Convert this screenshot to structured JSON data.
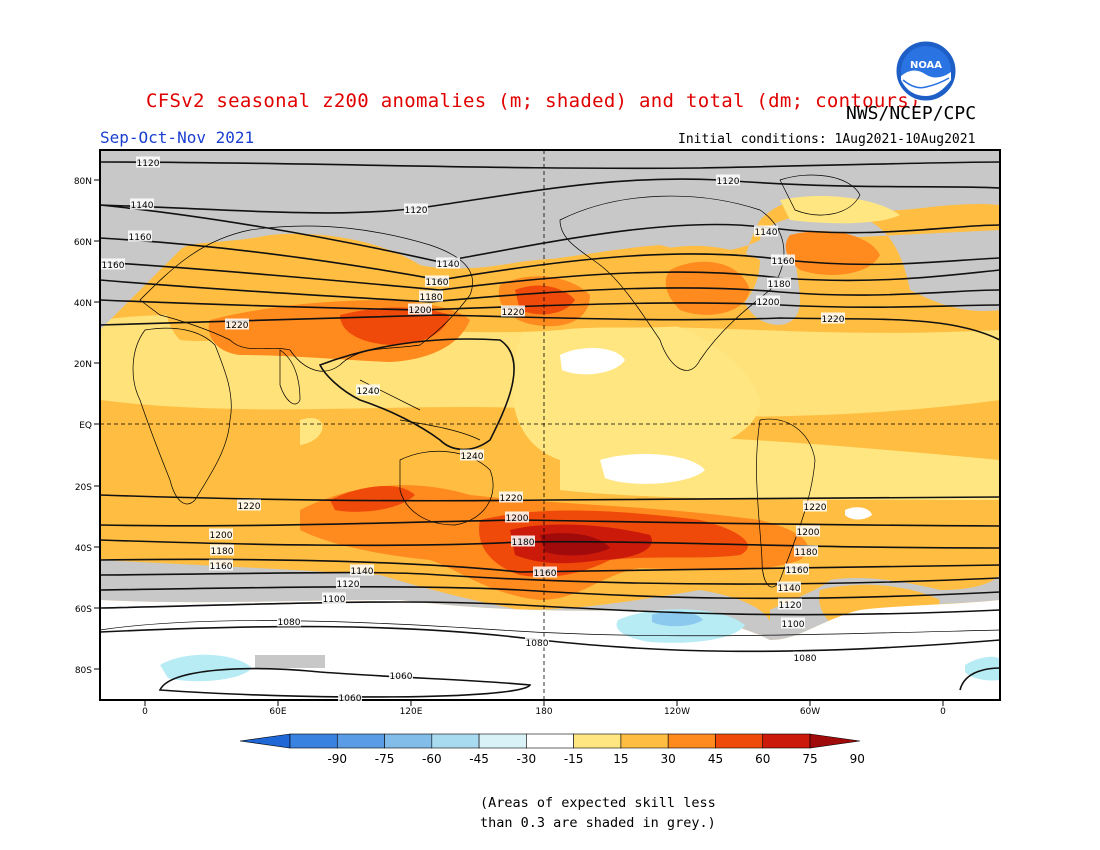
{
  "header": {
    "title": "CFSv2 seasonal z200 anomalies (m; shaded) and total (dm; contours)",
    "agency": "NWS/NCEP/CPC",
    "season": "Sep-Oct-Nov 2021",
    "initial_conditions": "Initial conditions: 1Aug2021-10Aug2021"
  },
  "logo": {
    "text": "NOAA",
    "icon": "noaa-logo-icon"
  },
  "axes": {
    "lat_labels": [
      "80N",
      "60N",
      "40N",
      "20N",
      "EQ",
      "20S",
      "40S",
      "60S",
      "80S"
    ],
    "lon_labels": [
      "0",
      "60E",
      "120E",
      "180",
      "120W",
      "60W",
      "0"
    ]
  },
  "colors": {
    "skill_grey": "#c8c8c8",
    "neutral": "#ffffff",
    "pos_15_30": "#ffe680",
    "pos_30_45": "#ffbe41",
    "pos_45_60": "#ff8a1e",
    "pos_60_75": "#f04a0a",
    "pos_75_90": "#cc1a0a",
    "pos_90_plus": "#a00a0a",
    "neg_15_30": "#b8ecf5",
    "neg_30_45": "#8cc9ee"
  },
  "colorbar": {
    "ticks": [
      "-90",
      "-75",
      "-60",
      "-45",
      "-30",
      "-15",
      "15",
      "30",
      "45",
      "60",
      "75",
      "90"
    ],
    "colors": [
      "#1f66d6",
      "#3a82e0",
      "#5a9de6",
      "#82bdea",
      "#a8daf0",
      "#d8f2f8",
      "#ffffff",
      "#ffe680",
      "#ffbe41",
      "#ff8a1e",
      "#f04a0a",
      "#cc1a0a",
      "#a00a0a"
    ]
  },
  "contour_labels": [
    "1120",
    "1120",
    "1120",
    "1140",
    "1140",
    "1160",
    "1160",
    "1160",
    "1140",
    "1160",
    "1180",
    "1200",
    "1180",
    "1200",
    "1220",
    "1220",
    "1220",
    "1240",
    "1240",
    "1220",
    "1220",
    "1200",
    "1200",
    "1180",
    "1180",
    "1160",
    "1160",
    "1140",
    "1120",
    "1100",
    "1220",
    "1200",
    "1180",
    "1160",
    "1140",
    "1120",
    "1100",
    "1080",
    "1080",
    "1080",
    "1060",
    "1060"
  ],
  "footnote": "(Areas of expected skill less\nthan 0.3 are shaded in grey.)"
}
